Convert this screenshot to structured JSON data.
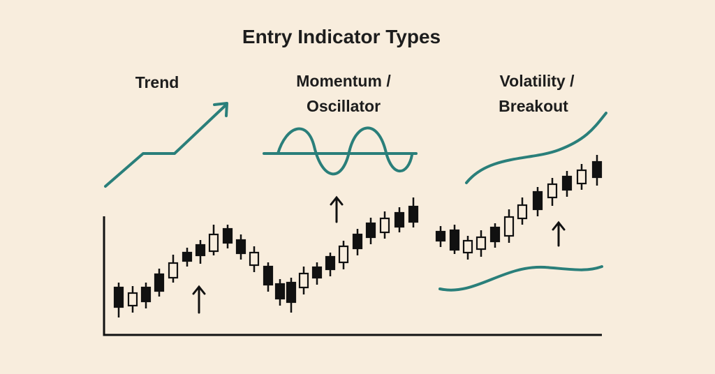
{
  "title": "Entry Indicator Types",
  "panels": [
    {
      "label": [
        "Trend"
      ]
    },
    {
      "label": [
        "Momentum /",
        "Oscillator"
      ]
    },
    {
      "label": [
        "Volatility /",
        "Breakout"
      ]
    }
  ]
}
